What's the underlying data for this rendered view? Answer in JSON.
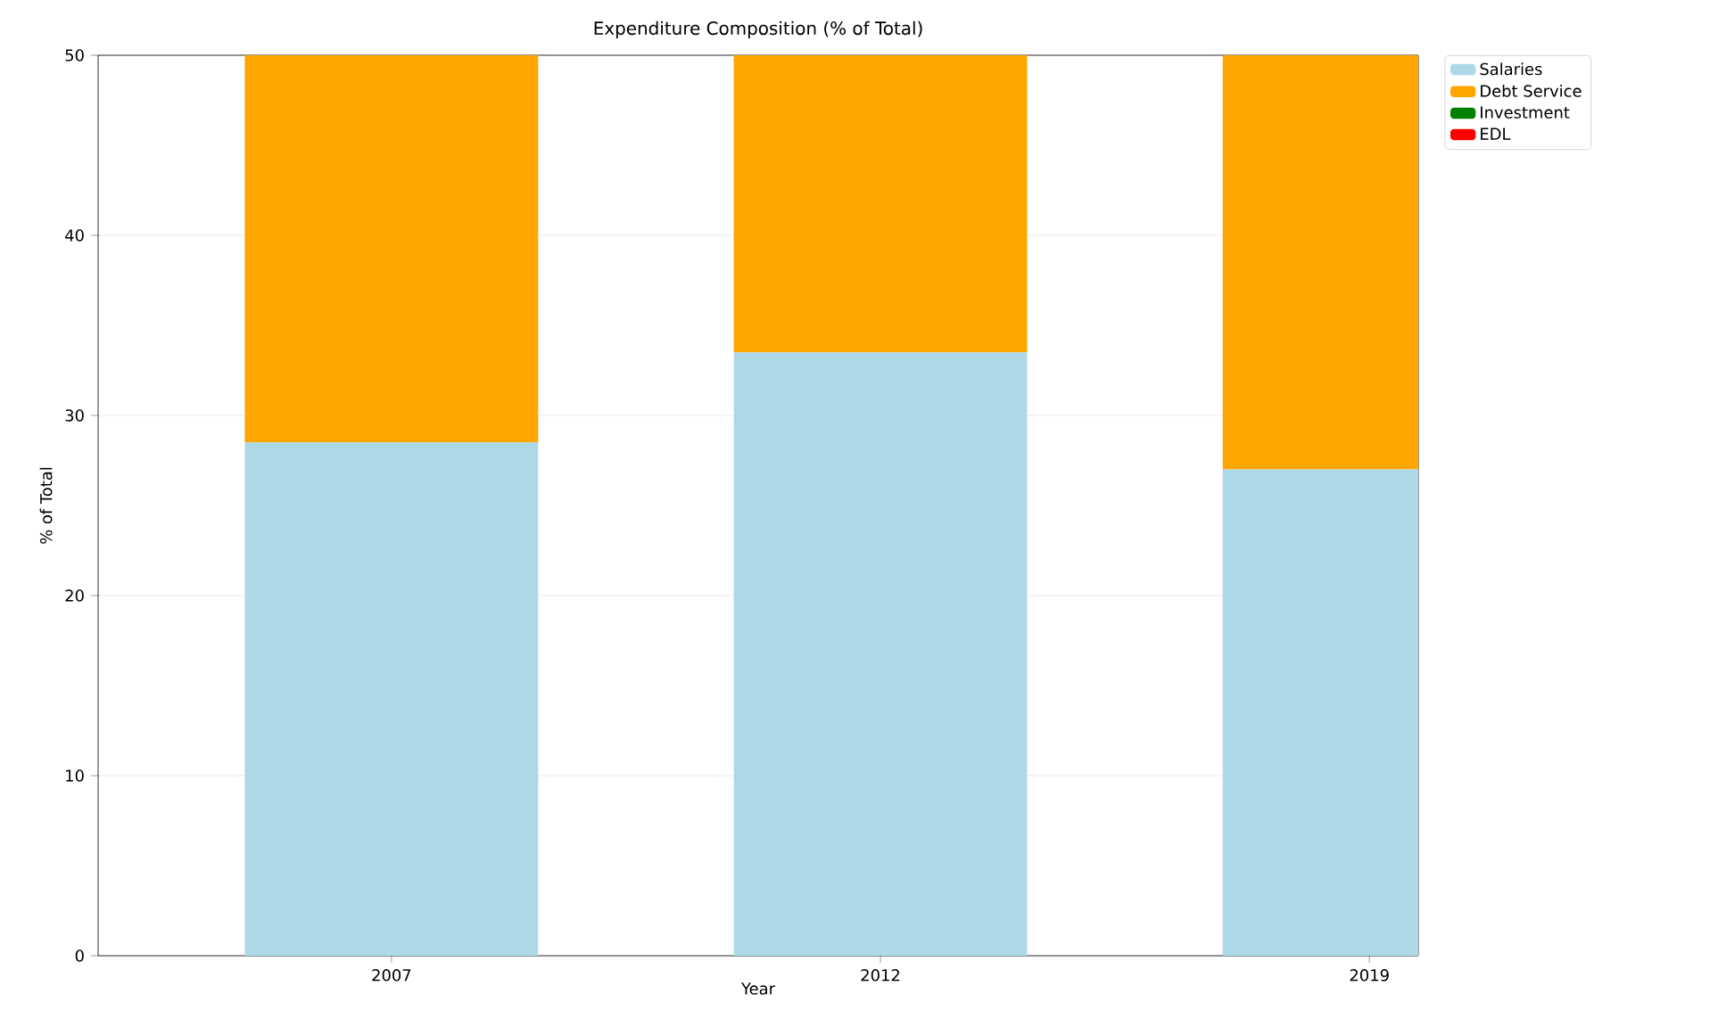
{
  "chart_data": {
    "type": "bar",
    "title": "Expenditure Composition (% of Total)",
    "xlabel": "Year",
    "ylabel": "% of Total",
    "categories": [
      "2007",
      "2012",
      "2019"
    ],
    "stacked": true,
    "series": [
      {
        "name": "Salaries",
        "color": "#add8e6",
        "values": [
          28.5,
          33.5,
          27
        ]
      },
      {
        "name": "Debt Service",
        "color": "#ffa500",
        "values": [
          21.5,
          16.5,
          23
        ]
      },
      {
        "name": "Investment",
        "color": "#008000",
        "values": [
          null,
          null,
          null
        ]
      },
      {
        "name": "EDL",
        "color": "#ff0000",
        "values": [
          null,
          null,
          null
        ]
      }
    ],
    "ylim": [
      0,
      50
    ],
    "yticks": [
      0,
      10,
      20,
      30,
      40,
      50
    ],
    "grid": "y",
    "legend": "top right"
  }
}
